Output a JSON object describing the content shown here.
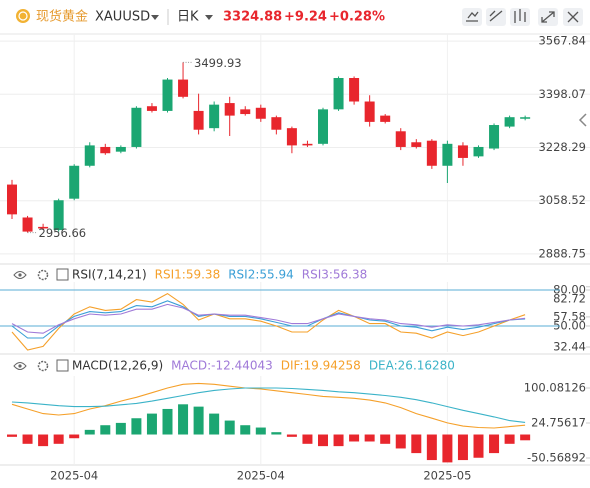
{
  "header": {
    "name": "现货黄金",
    "symbol": "XAUUSD",
    "period": "日K",
    "price": "3324.88",
    "change": "+9.24",
    "change_pct": "+0.28%"
  },
  "chart_data": [
    {
      "type": "candlestick",
      "categories": [
        null,
        null,
        null,
        null,
        "2025-04",
        null,
        null,
        null,
        null,
        null,
        null,
        null,
        null,
        null,
        null,
        null,
        "2025-04",
        null,
        null,
        null,
        null,
        null,
        null,
        null,
        null,
        null,
        null,
        null,
        "2025-05",
        null,
        null,
        null,
        null,
        null
      ],
      "open": [
        3110,
        3005,
        2975,
        2965,
        3065,
        3170,
        3230,
        3215,
        3230,
        3360,
        3345,
        3445,
        3345,
        3290,
        3370,
        3350,
        3355,
        3325,
        3290,
        3240,
        3240,
        3350,
        3450,
        3375,
        3330,
        3280,
        3245,
        3250,
        3170,
        3235,
        3200,
        3225,
        3295,
        3320
      ],
      "high": [
        3125,
        3010,
        2985,
        3065,
        3175,
        3245,
        3240,
        3235,
        3360,
        3370,
        3450,
        3499.93,
        3400,
        3375,
        3390,
        3360,
        3365,
        3330,
        3295,
        3250,
        3355,
        3455,
        3455,
        3395,
        3335,
        3290,
        3255,
        3255,
        3250,
        3245,
        3235,
        3305,
        3330,
        3330
      ],
      "low": [
        3000,
        2956.66,
        2965,
        2960,
        3060,
        3165,
        3205,
        3210,
        3225,
        3340,
        3340,
        3385,
        3270,
        3280,
        3265,
        3330,
        3310,
        3270,
        3210,
        3230,
        3235,
        3345,
        3365,
        3295,
        3305,
        3220,
        3225,
        3160,
        3115,
        3170,
        3195,
        3220,
        3290,
        3315
      ],
      "close": [
        3015,
        2960,
        2970,
        3060,
        3170,
        3235,
        3210,
        3230,
        3355,
        3345,
        3445,
        3390,
        3285,
        3365,
        3330,
        3335,
        3320,
        3285,
        3235,
        3235,
        3350,
        3450,
        3375,
        3310,
        3310,
        3230,
        3230,
        3170,
        3240,
        3195,
        3230,
        3300,
        3325,
        3324.88
      ],
      "up_color": "#1ba672",
      "down_color": "#e8262d",
      "ylim": [
        2863,
        3584
      ],
      "yticks": [
        3567.84,
        3398.07,
        3228.29,
        3058.52,
        2888.75
      ],
      "grid": true,
      "annotations": [
        {
          "index": 11,
          "value": 3499.93,
          "label": "3499.93"
        },
        {
          "index": 1,
          "value": 2956.66,
          "label": "2956.66"
        }
      ]
    },
    {
      "type": "line",
      "title": "RSI(7,14,21)",
      "series": [
        {
          "name": "RSI1:59.38",
          "color": "#f5a02a",
          "values": [
            45,
            30,
            33,
            48,
            60,
            66,
            63,
            64,
            72,
            70,
            77,
            68,
            55,
            60,
            56,
            56,
            54,
            50,
            45,
            45,
            55,
            63,
            58,
            52,
            52,
            45,
            44,
            40,
            45,
            42,
            45,
            50,
            55,
            59.38
          ]
        },
        {
          "name": "RSI2:55.94",
          "color": "#3b9fd6",
          "values": [
            50,
            40,
            40,
            50,
            58,
            62,
            61,
            62,
            67,
            66,
            71,
            66,
            58,
            60,
            58,
            58,
            56,
            53,
            50,
            50,
            56,
            61,
            58,
            55,
            54,
            50,
            49,
            46,
            49,
            47,
            49,
            52,
            55,
            55.94
          ]
        },
        {
          "name": "RSI3:56.38",
          "color": "#a07ad8",
          "values": [
            52,
            45,
            44,
            51,
            56,
            60,
            59,
            60,
            64,
            64,
            68,
            65,
            59,
            60,
            59,
            59,
            57,
            55,
            52,
            52,
            56,
            60,
            58,
            56,
            55,
            52,
            51,
            49,
            51,
            50,
            51,
            53,
            55,
            56.38
          ]
        }
      ],
      "ylim": [
        28.3,
        85
      ],
      "yticks": [
        {
          "value": 80,
          "label": "80.00"
        },
        82.72,
        57.58,
        {
          "value": 50,
          "label": "50.00"
        },
        32.44
      ],
      "reference_lines": [
        80,
        50
      ],
      "reference_color": "#5aaed6",
      "grid": false
    },
    {
      "type": "combo",
      "title": "MACD(12,26,9)",
      "series": [
        {
          "name": "MACD:-12.44043",
          "kind": "bar",
          "up_color": "#1ba672",
          "down_color": "#e8262d",
          "color": "#a07ad8",
          "values": [
            -5,
            -20,
            -25,
            -20,
            -8,
            10,
            20,
            25,
            35,
            45,
            55,
            65,
            60,
            45,
            30,
            20,
            15,
            5,
            -5,
            -20,
            -25,
            -25,
            -15,
            -15,
            -20,
            -30,
            -40,
            -55,
            -60,
            -55,
            -50,
            -40,
            -20,
            -12.44043
          ]
        },
        {
          "name": "DIF:19.94258",
          "kind": "line",
          "color": "#f5a02a",
          "values": [
            65,
            55,
            45,
            42,
            45,
            55,
            62,
            72,
            80,
            90,
            100,
            108,
            110,
            108,
            104,
            100,
            98,
            94,
            90,
            86,
            82,
            80,
            78,
            74,
            68,
            58,
            45,
            35,
            25,
            18,
            15,
            14,
            17,
            19.94258
          ]
        },
        {
          "name": "DEA:26.16280",
          "kind": "line",
          "color": "#3bb3c8",
          "values": [
            70,
            68,
            65,
            62,
            60,
            60,
            61,
            64,
            67,
            72,
            78,
            84,
            90,
            95,
            98,
            100,
            100,
            100,
            99,
            97,
            95,
            92,
            90,
            87,
            84,
            80,
            75,
            68,
            60,
            52,
            45,
            38,
            30,
            26.1628
          ]
        }
      ],
      "ylim": [
        -65.6,
        121.6
      ],
      "yticks": [
        100.08126,
        24.75617,
        -50.56892
      ],
      "grid": false
    }
  ]
}
